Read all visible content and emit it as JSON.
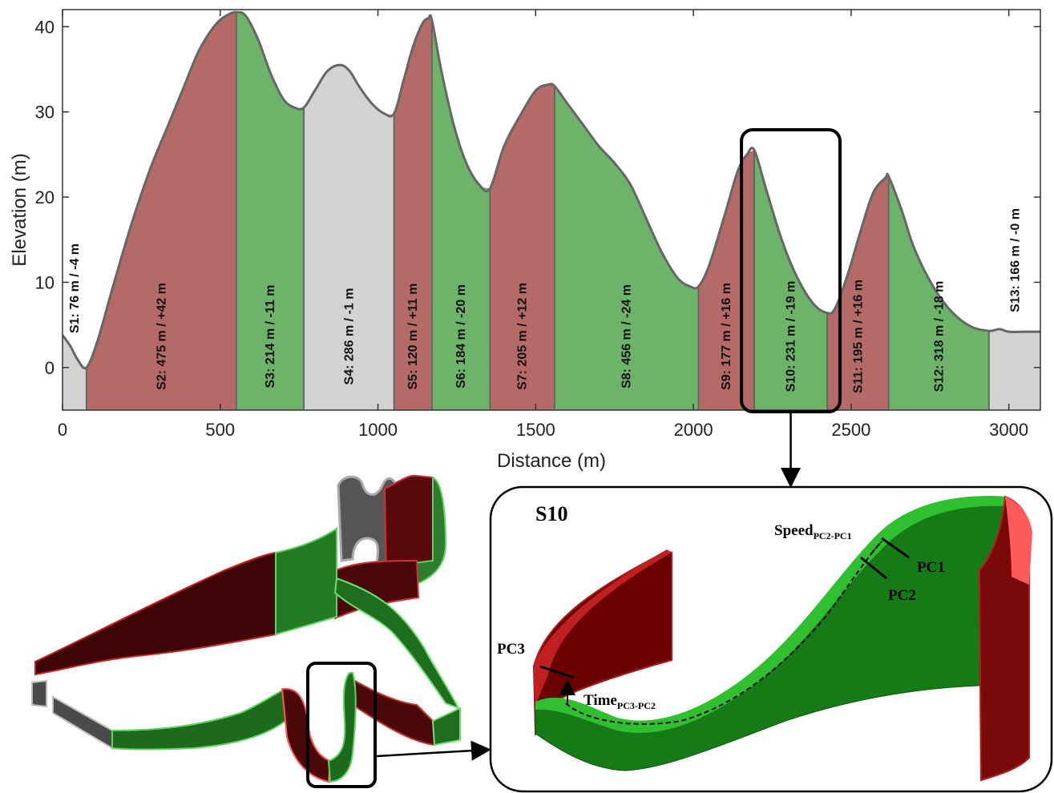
{
  "chart_data": {
    "type": "area",
    "xlabel": "Distance (m)",
    "ylabel": "Elevation (m)",
    "xlim": [
      0,
      3100
    ],
    "ylim": [
      -5,
      42
    ],
    "xticks": [
      0,
      500,
      1000,
      1500,
      2000,
      2500,
      3000
    ],
    "yticks": [
      0,
      10,
      20,
      30,
      40
    ],
    "profile": {
      "x": [
        0,
        25,
        50,
        76,
        110,
        160,
        220,
        280,
        330,
        380,
        430,
        470,
        500,
        530,
        551,
        580,
        620,
        660,
        700,
        735,
        765,
        800,
        840,
        880,
        910,
        940,
        980,
        1020,
        1051,
        1080,
        1110,
        1140,
        1160,
        1171,
        1200,
        1240,
        1280,
        1320,
        1355,
        1400,
        1450,
        1500,
        1540,
        1560,
        1600,
        1650,
        1700,
        1750,
        1800,
        1850,
        1900,
        1950,
        1990,
        2016,
        2050,
        2100,
        2140,
        2170,
        2193,
        2230,
        2280,
        2330,
        2380,
        2424,
        2450,
        2490,
        2530,
        2570,
        2610,
        2619,
        2660,
        2700,
        2760,
        2820,
        2880,
        2937,
        2970,
        3000,
        3050,
        3100
      ],
      "y": [
        3.8,
        2.5,
        0.8,
        0.0,
        3.0,
        9.5,
        17.0,
        23.5,
        28.0,
        32.5,
        37.0,
        39.5,
        40.8,
        41.5,
        41.7,
        41.3,
        38.5,
        34.5,
        31.5,
        30.5,
        30.5,
        32.5,
        34.8,
        35.5,
        34.8,
        33.0,
        31.0,
        29.8,
        29.8,
        33.5,
        37.5,
        40.3,
        41.0,
        40.8,
        35.0,
        28.5,
        24.0,
        21.5,
        21.0,
        26.0,
        29.5,
        32.5,
        33.2,
        33.0,
        31.0,
        28.5,
        26.0,
        24.0,
        21.5,
        17.5,
        13.5,
        10.5,
        9.5,
        9.5,
        12.0,
        18.0,
        23.0,
        25.0,
        25.5,
        21.0,
        15.0,
        10.5,
        7.5,
        6.4,
        7.0,
        11.0,
        16.0,
        20.5,
        22.3,
        22.4,
        18.5,
        14.0,
        9.5,
        6.5,
        4.8,
        4.3,
        4.5,
        4.2,
        4.2,
        4.2
      ]
    },
    "segments": [
      {
        "label": "S1: 76 m / -4 m",
        "start": 0,
        "end": 76,
        "color": "#d3d3d3"
      },
      {
        "label": "S2: 475 m / +42 m",
        "start": 76,
        "end": 551,
        "color": "#b46a66"
      },
      {
        "label": "S3: 214 m / -11 m",
        "start": 551,
        "end": 765,
        "color": "#6db36a"
      },
      {
        "label": "S4: 286 m / -1 m",
        "start": 765,
        "end": 1051,
        "color": "#d3d3d3"
      },
      {
        "label": "S5: 120 m / +11 m",
        "start": 1051,
        "end": 1171,
        "color": "#b46a66"
      },
      {
        "label": "S6: 184 m / -20 m",
        "start": 1171,
        "end": 1355,
        "color": "#6db36a"
      },
      {
        "label": "S7: 205 m / +12 m",
        "start": 1355,
        "end": 1560,
        "color": "#b46a66"
      },
      {
        "label": "S8: 456 m / -24 m",
        "start": 1560,
        "end": 2016,
        "color": "#6db36a"
      },
      {
        "label": "S9: 177 m / +16 m",
        "start": 2016,
        "end": 2193,
        "color": "#b46a66"
      },
      {
        "label": "S10: 231 m / -19 m",
        "start": 2193,
        "end": 2424,
        "color": "#6db36a"
      },
      {
        "label": "S11: 195 m / +16 m",
        "start": 2424,
        "end": 2619,
        "color": "#b46a66"
      },
      {
        "label": "S12: 318 m / -18 m",
        "start": 2619,
        "end": 2937,
        "color": "#6db36a"
      },
      {
        "label": "S13: 166 m / -0 m",
        "start": 2937,
        "end": 3103,
        "color": "#d3d3d3"
      }
    ],
    "highlight_segment": "S10",
    "grid": false
  },
  "inset": {
    "title": "S10",
    "speed_label": "Speed",
    "speed_sub": "PC2-PC1",
    "time_label": "Time",
    "time_sub": "PC3-PC2",
    "pc1": "PC1",
    "pc2": "PC2",
    "pc3": "PC3"
  },
  "colors": {
    "uphill": "#b46a66",
    "downhill": "#6db36a",
    "flat": "#d3d3d3",
    "track_red": "#8a1010",
    "track_green": "#1f8f1f",
    "track_gray": "#5a5a5a"
  }
}
